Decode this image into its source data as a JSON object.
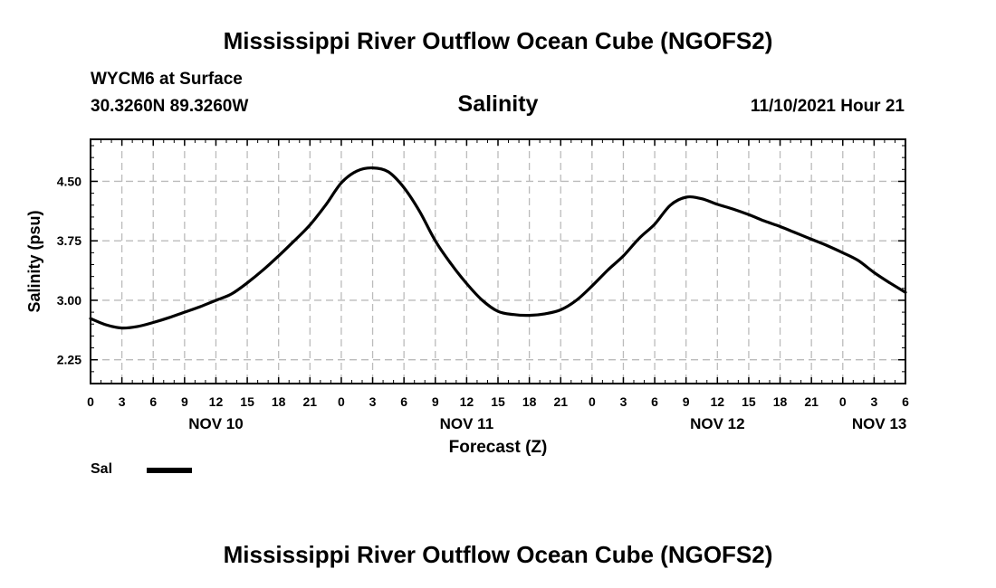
{
  "header": {
    "title": "Mississippi River Outflow Ocean Cube (NGOFS2)",
    "station": "WYCM6 at Surface",
    "coordinates": "30.3260N  89.3260W",
    "datetime": "11/10/2021 Hour 21"
  },
  "footer": {
    "title": "Mississippi River Outflow Ocean Cube (NGOFS2)"
  },
  "legend": {
    "label": "Sal",
    "color": "#000000"
  },
  "chart_data": {
    "type": "line",
    "title": "Salinity",
    "xlabel": "Forecast (Z)",
    "ylabel": "Salinity (psu)",
    "xlim": [
      0,
      78
    ],
    "ylim": [
      1.95,
      5.03
    ],
    "grid": true,
    "yticks": [
      2.25,
      3.0,
      3.75,
      4.5
    ],
    "ytick_labels": [
      "2.25",
      "3.00",
      "3.75",
      "4.50"
    ],
    "xticks": [
      0,
      3,
      6,
      9,
      12,
      15,
      18,
      21,
      24,
      27,
      30,
      33,
      36,
      39,
      42,
      45,
      48,
      51,
      54,
      57,
      60,
      63,
      66,
      69,
      72,
      75,
      78
    ],
    "xtick_labels": [
      "0",
      "3",
      "6",
      "9",
      "12",
      "15",
      "18",
      "21",
      "0",
      "3",
      "6",
      "9",
      "12",
      "15",
      "18",
      "21",
      "0",
      "3",
      "6",
      "9",
      "12",
      "15",
      "18",
      "21",
      "0",
      "3",
      "6"
    ],
    "date_labels": [
      {
        "hour": 12,
        "label": "NOV 10"
      },
      {
        "hour": 36,
        "label": "NOV 11"
      },
      {
        "hour": 60,
        "label": "NOV 12"
      },
      {
        "hour": 75.5,
        "label": "NOV 13"
      }
    ],
    "series": [
      {
        "name": "Sal",
        "x": [
          0,
          1.5,
          3,
          4.5,
          6,
          7.5,
          9,
          10.5,
          12,
          13.5,
          15,
          16.5,
          18,
          19.5,
          21,
          22.5,
          24,
          25.5,
          27,
          28.5,
          30,
          31.5,
          33,
          34.5,
          36,
          37.5,
          39,
          40.5,
          42,
          43.5,
          45,
          46.5,
          48,
          49.5,
          51,
          52.5,
          54,
          55.5,
          57,
          58.5,
          60,
          61.5,
          63,
          64.5,
          66,
          67.5,
          69,
          70.5,
          72,
          73.5,
          75,
          76.5,
          78
        ],
        "values": [
          2.77,
          2.69,
          2.65,
          2.67,
          2.72,
          2.78,
          2.85,
          2.92,
          3.0,
          3.08,
          3.22,
          3.38,
          3.56,
          3.75,
          3.95,
          4.2,
          4.48,
          4.63,
          4.67,
          4.62,
          4.42,
          4.12,
          3.75,
          3.46,
          3.21,
          3.0,
          2.86,
          2.82,
          2.81,
          2.83,
          2.88,
          3.0,
          3.18,
          3.38,
          3.56,
          3.78,
          3.96,
          4.2,
          4.3,
          4.28,
          4.21,
          4.15,
          4.08,
          4.0,
          3.93,
          3.85,
          3.77,
          3.69,
          3.6,
          3.5,
          3.35,
          3.22,
          3.1
        ]
      }
    ]
  }
}
